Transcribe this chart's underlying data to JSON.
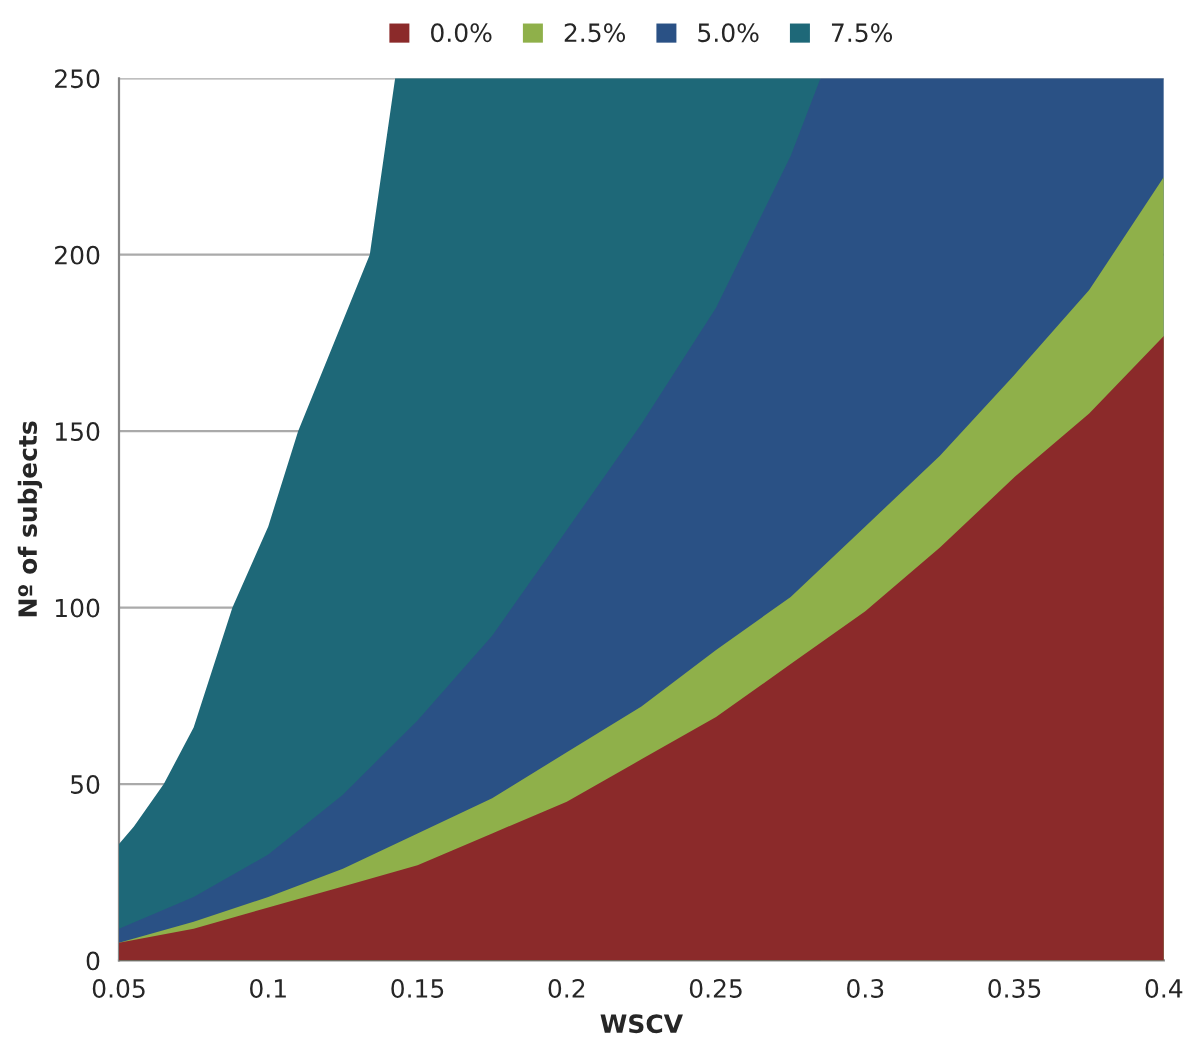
{
  "chart_data": {
    "type": "area",
    "xlabel": "WSCV",
    "ylabel": "Nº of subjects",
    "xlim": [
      0.05,
      0.4
    ],
    "xticks": [
      0.05,
      0.1,
      0.15,
      0.2,
      0.25,
      0.3,
      0.35,
      0.4
    ],
    "ylim": [
      0,
      250
    ],
    "yticks": [
      0,
      50,
      100,
      150,
      200,
      250
    ],
    "grid": "y",
    "legend": "top",
    "x": [
      0.05,
      0.075,
      0.1,
      0.125,
      0.15,
      0.175,
      0.2,
      0.225,
      0.25,
      0.275,
      0.3,
      0.325,
      0.35,
      0.375,
      0.4
    ],
    "series": [
      {
        "name": "0.0%",
        "color": "#8b2a2a",
        "values": [
          5,
          9,
          15,
          21,
          27,
          36,
          45,
          57,
          69,
          84,
          99,
          117,
          137,
          155,
          177
        ]
      },
      {
        "name": "2.5%",
        "color": "#8fb04a",
        "values": [
          5,
          11,
          18,
          26,
          36,
          46,
          59,
          72,
          88,
          103,
          123,
          143,
          166,
          190,
          222
        ]
      },
      {
        "name": "5.0%",
        "color": "#2a5185",
        "x": [
          0.05,
          0.075,
          0.1,
          0.125,
          0.15,
          0.175,
          0.2,
          0.225,
          0.25,
          0.275,
          0.285,
          0.4
        ],
        "values": [
          9,
          18,
          30,
          47,
          68,
          92,
          122,
          152,
          185,
          228,
          250,
          250
        ]
      },
      {
        "name": "7.5%",
        "color": "#1e6878",
        "x": [
          0.05,
          0.055,
          0.065,
          0.075,
          0.088,
          0.1,
          0.11,
          0.122,
          0.134,
          0.1425,
          0.285
        ],
        "values": [
          33,
          38,
          50,
          66,
          100,
          123,
          150,
          175,
          200,
          250,
          250
        ]
      }
    ]
  }
}
